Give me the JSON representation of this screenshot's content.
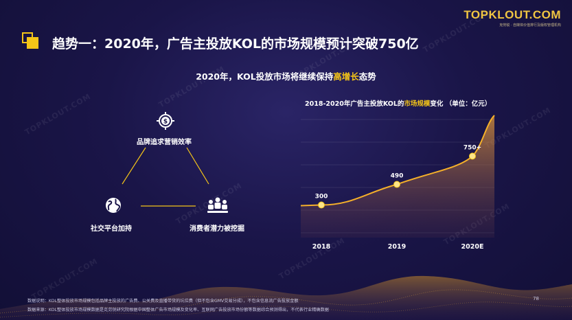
{
  "logo": {
    "text": "TOPKLOUT.COM",
    "subtext": "克劳锐 · 自媒体价值排行及版权管理机构"
  },
  "title": "趋势一：2020年，广告主投放KOL的市场规模预计突破750亿",
  "subtitle": {
    "prefix": "2020年，KOL投放市场将继续保持",
    "highlight": "高增长",
    "suffix": "态势"
  },
  "diagram": {
    "top": "品牌追求营销效率",
    "left": "社交平台加持",
    "right": "消费者潜力被挖掘"
  },
  "chart_title": {
    "prefix": "2018-2020年广告主投放KOL的",
    "highlight": "市场规模",
    "suffix": "变化 （单位：亿元）"
  },
  "chart_data": {
    "type": "line",
    "title": "2018-2020年广告主投放KOL的市场规模变化 （单位：亿元）",
    "categories": [
      "2018",
      "2019",
      "2020E"
    ],
    "values": [
      300,
      490,
      750
    ],
    "data_labels": [
      "300",
      "490",
      "750+"
    ],
    "ylim": [
      0,
      1100
    ]
  },
  "footer": {
    "line1": "数据说明：KOL整体投放市场规模包括品牌主投放的广告费、公关费及直播带货的坑位费（但不包含GMV交易分成），不包含信息流广告投放金额",
    "line2": "数据来源：KOL整体投放市场规模数据是克劳锐研究院根据中国整体广告市场规模及变化率、互联网广告投放市场份额等数据综合预测得出，不代表行业精确数据"
  },
  "page_number": "78",
  "colors": {
    "accent": "#f5c518",
    "background": "#1a1548"
  }
}
